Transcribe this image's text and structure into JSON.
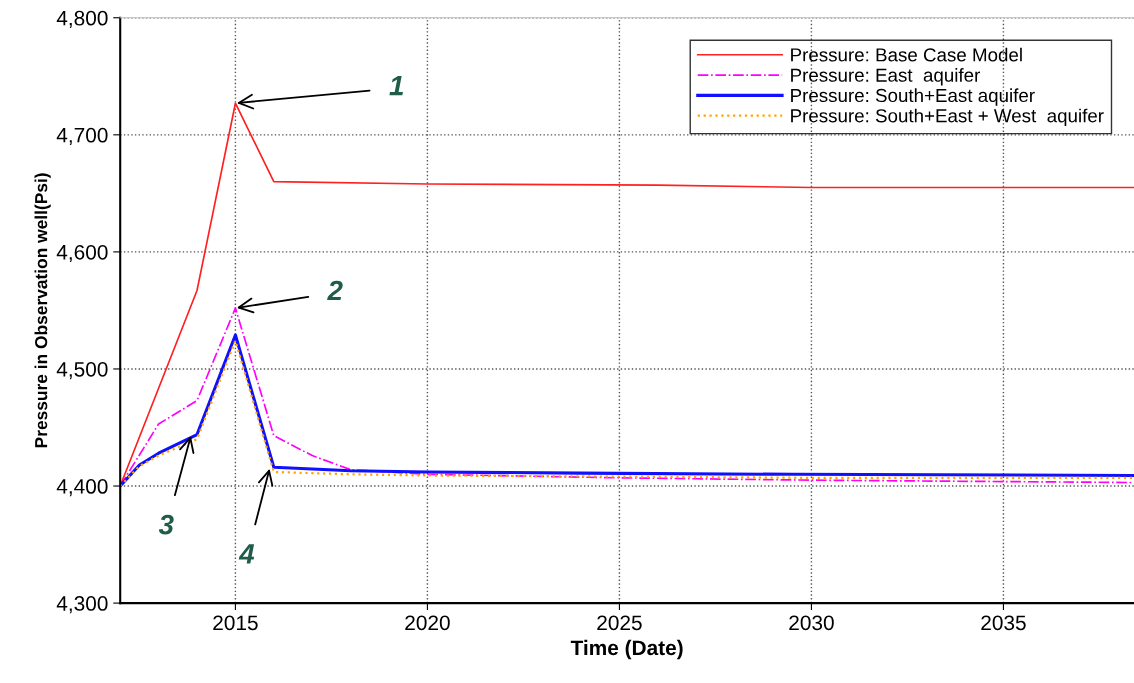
{
  "chart_data": {
    "type": "line",
    "xlabel": "Time (Date)",
    "ylabel": "Pressure in Observation well(Psi)",
    "xlim": [
      2012,
      2038.4
    ],
    "xticks": [
      2015,
      2020,
      2025,
      2030,
      2035
    ],
    "ylim": [
      4300,
      4800
    ],
    "yticks": [
      {
        "value": 4300,
        "label": "4,300"
      },
      {
        "value": 4400,
        "label": "4,400"
      },
      {
        "value": 4500,
        "label": "4,500"
      },
      {
        "value": 4600,
        "label": "4,600"
      },
      {
        "value": 4700,
        "label": "4,700"
      },
      {
        "value": 4800,
        "label": "4,800"
      }
    ],
    "grid": true,
    "legend": "top right",
    "marker": "none",
    "series": [
      {
        "name": "Pressure: Base Case Model",
        "color": "#ff2020",
        "line_style": "solid",
        "x": [
          2012,
          2014,
          2015,
          2016,
          2020,
          2026,
          2030,
          2038.4
        ],
        "values": [
          4400,
          4567,
          4727,
          4660,
          4658,
          4657,
          4655,
          4655
        ]
      },
      {
        "name": "Pressure: East  aquifer",
        "color": "#ff00ff",
        "line_style": "dashdot",
        "x": [
          2012,
          2013,
          2014,
          2015,
          2016,
          2017,
          2018,
          2020,
          2025,
          2030,
          2038.4
        ],
        "values": [
          4400,
          4453,
          4473,
          4552,
          4443,
          4426,
          4414,
          4410,
          4407,
          4405,
          4403
        ]
      },
      {
        "name": "Pressure: South+East aquifer",
        "color": "#1010ff",
        "line_style": "solid",
        "x": [
          2012,
          2012.5,
          2013,
          2014,
          2015,
          2016,
          2018,
          2020,
          2024,
          2029.5,
          2038.4
        ],
        "values": [
          4400,
          4418,
          4428,
          4444,
          4529,
          4416,
          4413,
          4412,
          4411,
          4410,
          4409
        ]
      },
      {
        "name": "Pressure: South+East + West  aquifer",
        "color": "#ffa500",
        "line_style": "dotted",
        "x": [
          2012,
          2012.5,
          2013,
          2014,
          2015,
          2016,
          2018,
          2020,
          2025,
          2030,
          2038.4
        ],
        "values": [
          4400,
          4417,
          4426,
          4440,
          4524,
          4412,
          4410,
          4409,
          4408,
          4407,
          4407
        ]
      }
    ],
    "annotations": [
      {
        "text": "1",
        "x": 2015,
        "y": 4727
      },
      {
        "text": "2",
        "x": 2015,
        "y": 4552
      },
      {
        "text": "3",
        "x": 2013.85,
        "y": 4444
      },
      {
        "text": "4",
        "x": 2015.9,
        "y": 4416
      }
    ]
  }
}
